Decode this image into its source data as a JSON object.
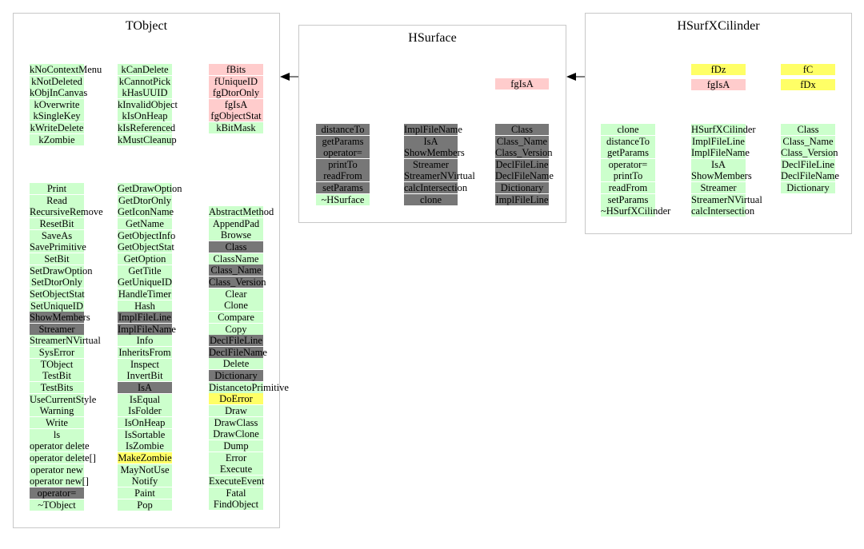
{
  "colors": {
    "green": "#ccffcc",
    "pink": "#ffcccc",
    "yellow": "#ffff66",
    "dark": "#777777",
    "border": "#c8c8c8"
  },
  "tobject": {
    "title": "TObject",
    "top_left": [
      {
        "text": "kNoContextMenu",
        "c": "g"
      },
      {
        "text": "kNotDeleted",
        "c": "g"
      },
      {
        "text": "kObjInCanvas",
        "c": "g"
      },
      {
        "text": "kOverwrite",
        "c": "g"
      },
      {
        "text": "kSingleKey",
        "c": "g"
      },
      {
        "text": "kWriteDelete",
        "c": "g"
      },
      {
        "text": "kZombie",
        "c": "g"
      }
    ],
    "top_mid": [
      {
        "text": "kCanDelete",
        "c": "g"
      },
      {
        "text": "kCannotPick",
        "c": "g"
      },
      {
        "text": "kHasUUID",
        "c": "g"
      },
      {
        "text": "kInvalidObject",
        "c": "g"
      },
      {
        "text": "kIsOnHeap",
        "c": "g"
      },
      {
        "text": "kIsReferenced",
        "c": "g"
      },
      {
        "text": "kMustCleanup",
        "c": "g"
      }
    ],
    "top_right": [
      {
        "text": "fBits",
        "c": "p"
      },
      {
        "text": "fUniqueID",
        "c": "p"
      },
      {
        "text": "fgDtorOnly",
        "c": "p"
      },
      {
        "text": "fgIsA",
        "c": "p"
      },
      {
        "text": "fgObjectStat",
        "c": "p"
      },
      {
        "text": "kBitMask",
        "c": "g"
      }
    ],
    "col1": [
      {
        "text": "Print",
        "c": "g"
      },
      {
        "text": "Read",
        "c": "g"
      },
      {
        "text": "RecursiveRemove",
        "c": "g"
      },
      {
        "text": "ResetBit",
        "c": "g"
      },
      {
        "text": "SaveAs",
        "c": "g"
      },
      {
        "text": "SavePrimitive",
        "c": "g"
      },
      {
        "text": "SetBit",
        "c": "g"
      },
      {
        "text": "SetDrawOption",
        "c": "g"
      },
      {
        "text": "SetDtorOnly",
        "c": "g"
      },
      {
        "text": "SetObjectStat",
        "c": "g"
      },
      {
        "text": "SetUniqueID",
        "c": "g"
      },
      {
        "text": "ShowMembers",
        "c": "d"
      },
      {
        "text": "Streamer",
        "c": "d"
      },
      {
        "text": "StreamerNVirtual",
        "c": "g"
      },
      {
        "text": "SysError",
        "c": "g"
      },
      {
        "text": "TObject",
        "c": "g"
      },
      {
        "text": "TestBit",
        "c": "g"
      },
      {
        "text": "TestBits",
        "c": "g"
      },
      {
        "text": "UseCurrentStyle",
        "c": "g"
      },
      {
        "text": "Warning",
        "c": "g"
      },
      {
        "text": "Write",
        "c": "g"
      },
      {
        "text": "ls",
        "c": "g"
      },
      {
        "text": "operator delete",
        "c": "g"
      },
      {
        "text": "operator delete[]",
        "c": "g"
      },
      {
        "text": "operator new",
        "c": "g"
      },
      {
        "text": "operator new[]",
        "c": "g"
      },
      {
        "text": "operator=",
        "c": "d"
      },
      {
        "text": "~TObject",
        "c": "g"
      }
    ],
    "col2": [
      {
        "text": "GetDrawOption",
        "c": "g"
      },
      {
        "text": "GetDtorOnly",
        "c": "g"
      },
      {
        "text": "GetIconName",
        "c": "g"
      },
      {
        "text": "GetName",
        "c": "g"
      },
      {
        "text": "GetObjectInfo",
        "c": "g"
      },
      {
        "text": "GetObjectStat",
        "c": "g"
      },
      {
        "text": "GetOption",
        "c": "g"
      },
      {
        "text": "GetTitle",
        "c": "g"
      },
      {
        "text": "GetUniqueID",
        "c": "g"
      },
      {
        "text": "HandleTimer",
        "c": "g"
      },
      {
        "text": "Hash",
        "c": "g"
      },
      {
        "text": "ImplFileLine",
        "c": "d"
      },
      {
        "text": "ImplFileName",
        "c": "d"
      },
      {
        "text": "Info",
        "c": "g"
      },
      {
        "text": "InheritsFrom",
        "c": "g"
      },
      {
        "text": "Inspect",
        "c": "g"
      },
      {
        "text": "InvertBit",
        "c": "g"
      },
      {
        "text": "IsA",
        "c": "d"
      },
      {
        "text": "IsEqual",
        "c": "g"
      },
      {
        "text": "IsFolder",
        "c": "g"
      },
      {
        "text": "IsOnHeap",
        "c": "g"
      },
      {
        "text": "IsSortable",
        "c": "g"
      },
      {
        "text": "IsZombie",
        "c": "g"
      },
      {
        "text": "MakeZombie",
        "c": "y"
      },
      {
        "text": "MayNotUse",
        "c": "g"
      },
      {
        "text": "Notify",
        "c": "g"
      },
      {
        "text": "Paint",
        "c": "g"
      },
      {
        "text": "Pop",
        "c": "g"
      }
    ],
    "col3": [
      {
        "text": "AbstractMethod",
        "c": "g"
      },
      {
        "text": "AppendPad",
        "c": "g"
      },
      {
        "text": "Browse",
        "c": "g"
      },
      {
        "text": "Class",
        "c": "d"
      },
      {
        "text": "ClassName",
        "c": "g"
      },
      {
        "text": "Class_Name",
        "c": "d"
      },
      {
        "text": "Class_Version",
        "c": "d"
      },
      {
        "text": "Clear",
        "c": "g"
      },
      {
        "text": "Clone",
        "c": "g"
      },
      {
        "text": "Compare",
        "c": "g"
      },
      {
        "text": "Copy",
        "c": "g"
      },
      {
        "text": "DeclFileLine",
        "c": "d"
      },
      {
        "text": "DeclFileName",
        "c": "d"
      },
      {
        "text": "Delete",
        "c": "g"
      },
      {
        "text": "Dictionary",
        "c": "d"
      },
      {
        "text": "DistancetoPrimitive",
        "c": "g"
      },
      {
        "text": "DoError",
        "c": "y"
      },
      {
        "text": "Draw",
        "c": "g"
      },
      {
        "text": "DrawClass",
        "c": "g"
      },
      {
        "text": "DrawClone",
        "c": "g"
      },
      {
        "text": "Dump",
        "c": "g"
      },
      {
        "text": "Error",
        "c": "g"
      },
      {
        "text": "Execute",
        "c": "g"
      },
      {
        "text": "ExecuteEvent",
        "c": "g"
      },
      {
        "text": "Fatal",
        "c": "g"
      },
      {
        "text": "FindObject",
        "c": "g"
      }
    ]
  },
  "hsurface": {
    "title": "HSurface",
    "top_right": [
      {
        "text": "fgIsA",
        "c": "p"
      }
    ],
    "col1": [
      {
        "text": "distanceTo",
        "c": "d"
      },
      {
        "text": "getParams",
        "c": "d"
      },
      {
        "text": "operator=",
        "c": "d"
      },
      {
        "text": "printTo",
        "c": "d"
      },
      {
        "text": "readFrom",
        "c": "d"
      },
      {
        "text": "setParams",
        "c": "d"
      },
      {
        "text": "~HSurface",
        "c": "g"
      }
    ],
    "col2": [
      {
        "text": "ImplFileName",
        "c": "d"
      },
      {
        "text": "IsA",
        "c": "d"
      },
      {
        "text": "ShowMembers",
        "c": "d"
      },
      {
        "text": "Streamer",
        "c": "d"
      },
      {
        "text": "StreamerNVirtual",
        "c": "d"
      },
      {
        "text": "calcIntersection",
        "c": "d"
      },
      {
        "text": "clone",
        "c": "d"
      }
    ],
    "col3": [
      {
        "text": "Class",
        "c": "d"
      },
      {
        "text": "Class_Name",
        "c": "d"
      },
      {
        "text": "Class_Version",
        "c": "d"
      },
      {
        "text": "DeclFileLine",
        "c": "d"
      },
      {
        "text": "DeclFileName",
        "c": "d"
      },
      {
        "text": "Dictionary",
        "c": "d"
      },
      {
        "text": "ImplFileLine",
        "c": "d"
      }
    ]
  },
  "hsurfxcilinder": {
    "title": "HSurfXCilinder",
    "top_mid": [
      {
        "text": "fDz",
        "c": "y"
      },
      {
        "text": "fgIsA",
        "c": "p"
      }
    ],
    "top_right": [
      {
        "text": "fC",
        "c": "y"
      },
      {
        "text": "fDx",
        "c": "y"
      }
    ],
    "col1": [
      {
        "text": "clone",
        "c": "g"
      },
      {
        "text": "distanceTo",
        "c": "g"
      },
      {
        "text": "getParams",
        "c": "g"
      },
      {
        "text": "operator=",
        "c": "g"
      },
      {
        "text": "printTo",
        "c": "g"
      },
      {
        "text": "readFrom",
        "c": "g"
      },
      {
        "text": "setParams",
        "c": "g"
      },
      {
        "text": "~HSurfXCilinder",
        "c": "g"
      }
    ],
    "col2": [
      {
        "text": "HSurfXCilinder",
        "c": "g"
      },
      {
        "text": "ImplFileLine",
        "c": "g"
      },
      {
        "text": "ImplFileName",
        "c": "g"
      },
      {
        "text": "IsA",
        "c": "g"
      },
      {
        "text": "ShowMembers",
        "c": "g"
      },
      {
        "text": "Streamer",
        "c": "g"
      },
      {
        "text": "StreamerNVirtual",
        "c": "g"
      },
      {
        "text": "calcIntersection",
        "c": "g"
      }
    ],
    "col3": [
      {
        "text": "Class",
        "c": "g"
      },
      {
        "text": "Class_Name",
        "c": "g"
      },
      {
        "text": "Class_Version",
        "c": "g"
      },
      {
        "text": "DeclFileLine",
        "c": "g"
      },
      {
        "text": "DeclFileName",
        "c": "g"
      },
      {
        "text": "Dictionary",
        "c": "g"
      }
    ]
  }
}
